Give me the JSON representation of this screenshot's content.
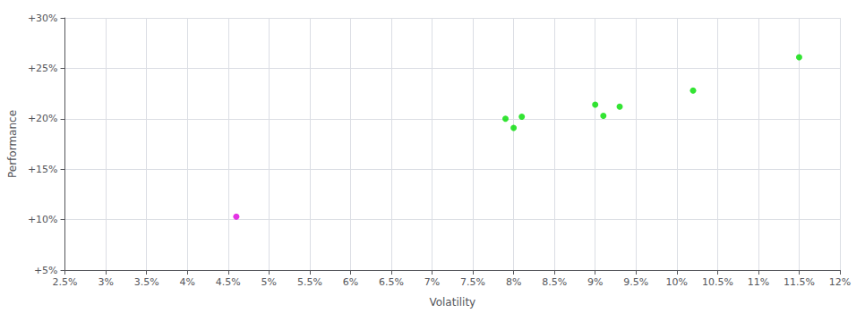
{
  "chart_data": {
    "type": "scatter",
    "xlabel": "Volatility",
    "ylabel": "Performance",
    "xlim": [
      0.025,
      0.12
    ],
    "ylim": [
      0.05,
      0.3
    ],
    "xticks": [
      {
        "value": 0.025,
        "label": "2.5%"
      },
      {
        "value": 0.03,
        "label": "3%"
      },
      {
        "value": 0.035,
        "label": "3.5%"
      },
      {
        "value": 0.04,
        "label": "4%"
      },
      {
        "value": 0.045,
        "label": "4.5%"
      },
      {
        "value": 0.05,
        "label": "5%"
      },
      {
        "value": 0.055,
        "label": "5.5%"
      },
      {
        "value": 0.06,
        "label": "6%"
      },
      {
        "value": 0.065,
        "label": "6.5%"
      },
      {
        "value": 0.07,
        "label": "7%"
      },
      {
        "value": 0.075,
        "label": "7.5%"
      },
      {
        "value": 0.08,
        "label": "8%"
      },
      {
        "value": 0.085,
        "label": "8.5%"
      },
      {
        "value": 0.09,
        "label": "9%"
      },
      {
        "value": 0.095,
        "label": "9.5%"
      },
      {
        "value": 0.1,
        "label": "10%"
      },
      {
        "value": 0.105,
        "label": "10.5%"
      },
      {
        "value": 0.11,
        "label": "11%"
      },
      {
        "value": 0.115,
        "label": "11.5%"
      },
      {
        "value": 0.12,
        "label": "12%"
      }
    ],
    "yticks": [
      {
        "value": 0.05,
        "label": "+5%"
      },
      {
        "value": 0.1,
        "label": "+10%"
      },
      {
        "value": 0.15,
        "label": "+15%"
      },
      {
        "value": 0.2,
        "label": "+20%"
      },
      {
        "value": 0.25,
        "label": "+25%"
      },
      {
        "value": 0.3,
        "label": "+30%"
      }
    ],
    "grid": true,
    "series": [
      {
        "color": "#00dd00",
        "x": [
          0.079,
          0.081,
          0.08,
          0.09,
          0.093,
          0.091,
          0.102,
          0.115
        ],
        "values": [
          0.2,
          0.202,
          0.191,
          0.214,
          0.212,
          0.203,
          0.228,
          0.261
        ]
      },
      {
        "color": "#dd00dd",
        "x": [
          0.046
        ],
        "values": [
          0.103
        ]
      }
    ]
  }
}
